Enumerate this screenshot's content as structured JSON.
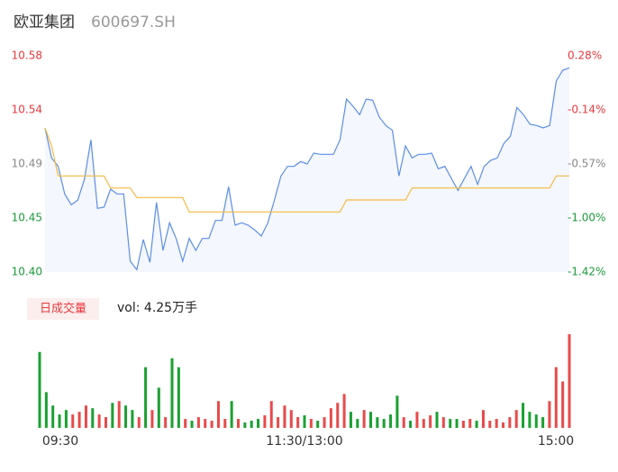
{
  "header": {
    "name": "欧亚集团",
    "code": "600697.SH"
  },
  "chart_data": [
    {
      "type": "line",
      "x": [
        0,
        3,
        6,
        9,
        12,
        15,
        18,
        21,
        24,
        27,
        30,
        33,
        36,
        39,
        42,
        45,
        48,
        51,
        54,
        57,
        60,
        63,
        66,
        69,
        72,
        75,
        78,
        81,
        84,
        87,
        90,
        93,
        96,
        99,
        102,
        105,
        108,
        111,
        114,
        117,
        120,
        123,
        126,
        129,
        132,
        135,
        138,
        141,
        144,
        147,
        150,
        153,
        156,
        159,
        162,
        165,
        168,
        171,
        174,
        177,
        180,
        183,
        186,
        189,
        192,
        195,
        198,
        201,
        204,
        207,
        210,
        213,
        216,
        219,
        222,
        225,
        228,
        231,
        234,
        237,
        240
      ],
      "series": [
        {
          "color": "#5b8ee6",
          "values": [
            10.52,
            10.495,
            10.488,
            10.465,
            10.456,
            10.46,
            10.477,
            10.51,
            10.453,
            10.454,
            10.469,
            10.465,
            10.465,
            10.409,
            10.402,
            10.427,
            10.408,
            10.458,
            10.418,
            10.441,
            10.428,
            10.409,
            10.428,
            10.418,
            10.428,
            10.428,
            10.443,
            10.443,
            10.471,
            10.439,
            10.441,
            10.439,
            10.435,
            10.43,
            10.441,
            10.46,
            10.48,
            10.488,
            10.488,
            10.492,
            10.49,
            10.499,
            10.498,
            10.498,
            10.498,
            10.51,
            10.544,
            10.538,
            10.531,
            10.544,
            10.543,
            10.529,
            10.522,
            10.518,
            10.48,
            10.505,
            10.495,
            10.498,
            10.498,
            10.499,
            10.486,
            10.488,
            10.478,
            10.468,
            10.478,
            10.488,
            10.473,
            10.488,
            10.493,
            10.495,
            10.507,
            10.513,
            10.537,
            10.531,
            10.523,
            10.522,
            10.52,
            10.522,
            10.559,
            10.568,
            10.57
          ]
        },
        {
          "color": "#f5b942",
          "values": [
            10.52,
            10.505,
            10.48,
            10.48,
            10.48,
            10.48,
            10.48,
            10.48,
            10.48,
            10.48,
            10.47,
            10.47,
            10.47,
            10.47,
            10.462,
            10.462,
            10.462,
            10.462,
            10.462,
            10.462,
            10.462,
            10.462,
            10.45,
            10.45,
            10.45,
            10.45,
            10.45,
            10.45,
            10.45,
            10.45,
            10.45,
            10.45,
            10.45,
            10.45,
            10.45,
            10.45,
            10.45,
            10.45,
            10.45,
            10.45,
            10.45,
            10.45,
            10.45,
            10.45,
            10.45,
            10.45,
            10.46,
            10.46,
            10.46,
            10.46,
            10.46,
            10.46,
            10.46,
            10.46,
            10.46,
            10.46,
            10.47,
            10.47,
            10.47,
            10.47,
            10.47,
            10.47,
            10.47,
            10.47,
            10.47,
            10.47,
            10.47,
            10.47,
            10.47,
            10.47,
            10.47,
            10.47,
            10.47,
            10.47,
            10.47,
            10.47,
            10.47,
            10.47,
            10.48,
            10.48,
            10.48
          ]
        }
      ],
      "xlim": [
        0,
        240
      ],
      "ylim": [
        10.4,
        10.58
      ],
      "yticks": [
        10.58,
        {
          "value": 10.535,
          "label": "10.54"
        },
        10.49,
        {
          "value": 10.445,
          "label": "10.45"
        },
        {
          "value": 10.4,
          "label": "10.40"
        }
      ],
      "y2lim": [
        -1.42,
        0.28
      ],
      "y2ticks": [
        {
          "value": 0.28,
          "label": "0.28%"
        },
        {
          "value": -0.145,
          "label": "-0.14%"
        },
        {
          "value": -0.57,
          "label": "-0.57%"
        },
        {
          "value": -0.995,
          "label": "-1.00%"
        },
        {
          "value": -1.42,
          "label": "-1.42%"
        }
      ],
      "up_color": "#e8383d",
      "down_color": "#1a9a3a",
      "neutral_color": "#888888",
      "area_color": "#f4f7fd"
    },
    {
      "type": "bar",
      "badge": "日成交量",
      "volume_label": "vol: 4.25万手",
      "x": [
        0,
        3,
        6,
        9,
        12,
        15,
        18,
        21,
        24,
        27,
        30,
        33,
        36,
        39,
        42,
        45,
        48,
        51,
        54,
        57,
        60,
        63,
        66,
        69,
        72,
        75,
        78,
        81,
        84,
        87,
        90,
        93,
        96,
        99,
        102,
        105,
        108,
        111,
        114,
        117,
        120,
        123,
        126,
        129,
        132,
        135,
        138,
        141,
        144,
        147,
        150,
        153,
        156,
        159,
        162,
        165,
        168,
        171,
        174,
        177,
        180,
        183,
        186,
        189,
        192,
        195,
        198,
        201,
        204,
        207,
        210,
        213,
        216,
        219,
        222,
        225,
        228,
        231,
        234,
        237,
        240
      ],
      "values": [
        85,
        40,
        25,
        15,
        20,
        15,
        18,
        25,
        22,
        15,
        12,
        28,
        30,
        25,
        20,
        12,
        68,
        20,
        45,
        12,
        78,
        68,
        10,
        8,
        12,
        10,
        8,
        30,
        10,
        30,
        10,
        6,
        8,
        10,
        14,
        30,
        12,
        25,
        20,
        12,
        14,
        10,
        8,
        12,
        22,
        28,
        38,
        18,
        10,
        20,
        18,
        12,
        10,
        15,
        36,
        12,
        8,
        18,
        10,
        14,
        18,
        12,
        10,
        10,
        8,
        10,
        8,
        20,
        8,
        10,
        6,
        12,
        20,
        28,
        18,
        15,
        12,
        30,
        68,
        52,
        105
      ],
      "ylim": [
        0,
        108
      ],
      "xlim": [
        0,
        240
      ],
      "xticks": [
        {
          "value": 0,
          "label": "09:30"
        },
        {
          "value": 120,
          "label": "11:30/13:00"
        },
        {
          "value": 240,
          "label": "15:00"
        }
      ],
      "up_color": "#e84a4a",
      "down_color": "#1aa032"
    }
  ]
}
